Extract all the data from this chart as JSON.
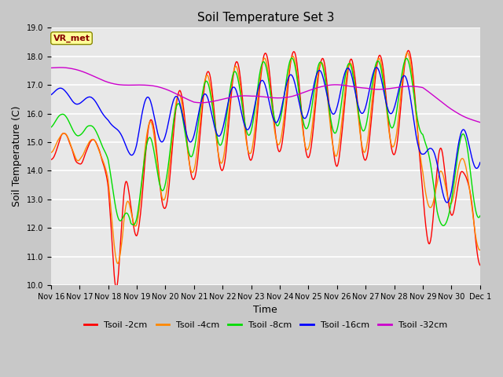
{
  "title": "Soil Temperature Set 3",
  "xlabel": "Time",
  "ylabel": "Soil Temperature (C)",
  "ylim": [
    10.0,
    19.0
  ],
  "yticks": [
    10.0,
    11.0,
    12.0,
    13.0,
    14.0,
    15.0,
    16.0,
    17.0,
    18.0,
    19.0
  ],
  "fig_bg_color": "#c8c8c8",
  "plot_bg_color": "#e8e8e8",
  "series_colors": [
    "#ff0000",
    "#ff8800",
    "#00dd00",
    "#0000ff",
    "#cc00cc"
  ],
  "series_labels": [
    "Tsoil -2cm",
    "Tsoil -4cm",
    "Tsoil -8cm",
    "Tsoil -16cm",
    "Tsoil -32cm"
  ],
  "x_tick_labels": [
    "Nov 16",
    "Nov 17",
    "Nov 18",
    "Nov 19",
    "Nov 20",
    "Nov 21",
    "Nov 22",
    "Nov 23",
    "Nov 24",
    "Nov 25",
    "Nov 26",
    "Nov 27",
    "Nov 28",
    "Nov 29",
    "Nov 30",
    "Dec 1"
  ],
  "vr_met_label": "VR_met",
  "vr_met_bg": "#ffff99",
  "vr_met_fg": "#880000",
  "title_fontsize": 11,
  "axis_label_fontsize": 9,
  "tick_fontsize": 7,
  "legend_fontsize": 8,
  "line_width": 1.0,
  "n_points": 720
}
